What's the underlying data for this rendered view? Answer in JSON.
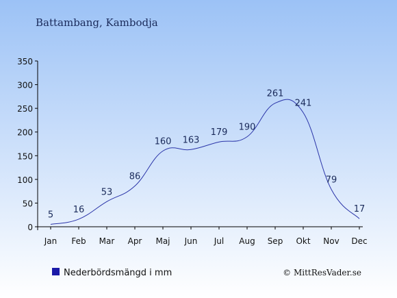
{
  "chart_data": {
    "type": "line",
    "title": "Battambang, Kambodja",
    "categories": [
      "Jan",
      "Feb",
      "Mar",
      "Apr",
      "Maj",
      "Jun",
      "Jul",
      "Aug",
      "Sep",
      "Okt",
      "Nov",
      "Dec"
    ],
    "series": [
      {
        "name": "Nederbördsmängd i mm",
        "values": [
          5,
          16,
          53,
          86,
          160,
          163,
          179,
          190,
          261,
          241,
          79,
          17
        ]
      }
    ],
    "ylim": [
      0,
      350
    ],
    "yticks": [
      0,
      50,
      100,
      150,
      200,
      250,
      300,
      350
    ],
    "grid": false,
    "legend": "bottom-left",
    "line_color": "#2a34a8",
    "label_color": "#1a2a5a",
    "background_top": "#9cc2f6",
    "background_bottom": "#ffffff"
  },
  "footer": {
    "legend_label": "Nederbördsmängd i mm",
    "copyright": "© MittResVader.se"
  }
}
